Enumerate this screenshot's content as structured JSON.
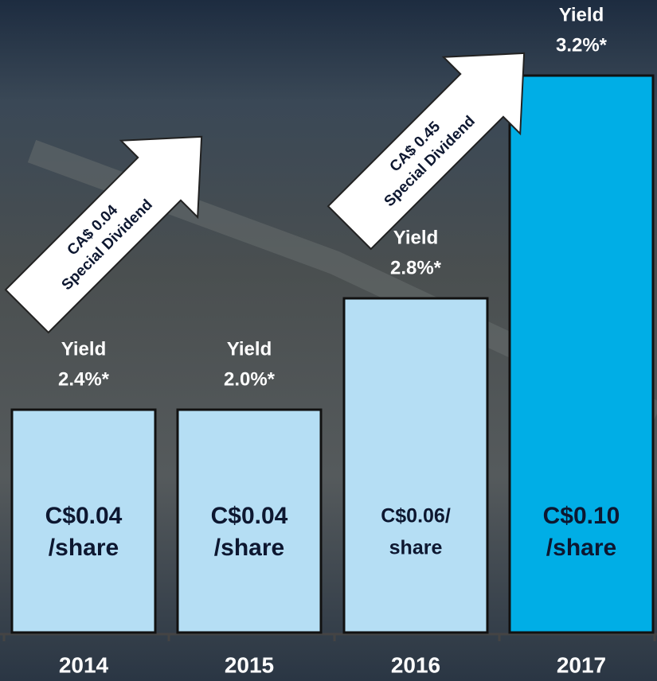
{
  "chart_data": {
    "type": "bar",
    "categories": [
      "2014",
      "2015",
      "2016",
      "2017"
    ],
    "values": [
      0.04,
      0.04,
      0.06,
      0.1
    ],
    "value_labels": [
      [
        "C$0.04",
        "/share"
      ],
      [
        "C$0.04",
        "/share"
      ],
      [
        "C$0.06/",
        "share"
      ],
      [
        "C$0.10",
        "/share"
      ]
    ],
    "yield_labels": [
      [
        "Yield",
        "2.4%*"
      ],
      [
        "Yield",
        "2.0%*"
      ],
      [
        "Yield",
        "2.8%*"
      ],
      [
        "Yield",
        "3.2%*"
      ]
    ],
    "colors": [
      "#b5def4",
      "#b5def4",
      "#b5def4",
      "#00aee6"
    ],
    "annotations": [
      [
        "CA$ 0.04",
        "Special Dividend"
      ],
      [
        "CA$ 0.45",
        "Special Dividend"
      ]
    ]
  }
}
